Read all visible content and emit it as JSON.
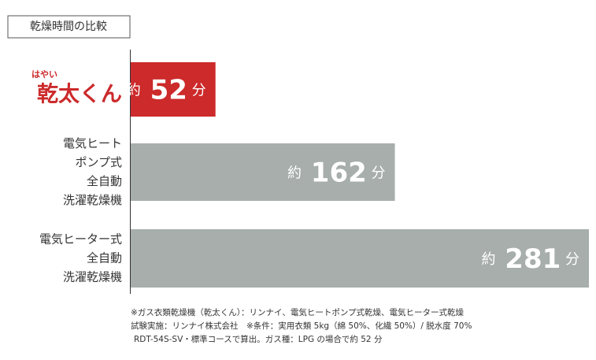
{
  "chart_data": {
    "type": "bar",
    "orientation": "horizontal",
    "title": "乾燥時間の比較",
    "categories": [
      [
        "はやい",
        "乾太くん"
      ],
      [
        "電気ヒート",
        "ポンプ式",
        "全自動",
        "洗濯乾燥機"
      ],
      [
        "電気ヒーター式",
        "全自動",
        "洗濯乾燥機"
      ]
    ],
    "values": [
      52,
      162,
      281
    ],
    "value_labels": [
      "約 52 分",
      "約 162 分",
      "約 281 分"
    ],
    "colors": [
      "#cc2a2b",
      "#a7aeac",
      "#a7aeac"
    ],
    "notes": [
      "※ガス衣類乾燥機（乾太くん）：リンナイ、電気ヒートポンプ式乾燥、電気ヒーター式乾燥",
      "試験実施：リンナイ株式会社　※条件：実用衣類 5kg（綿 50%、化繊 50%）/ 脱水度 70%",
      "RDT-54S-SV・標準コースで算出。ガス種：LPG の場合で約 52 分"
    ]
  }
}
